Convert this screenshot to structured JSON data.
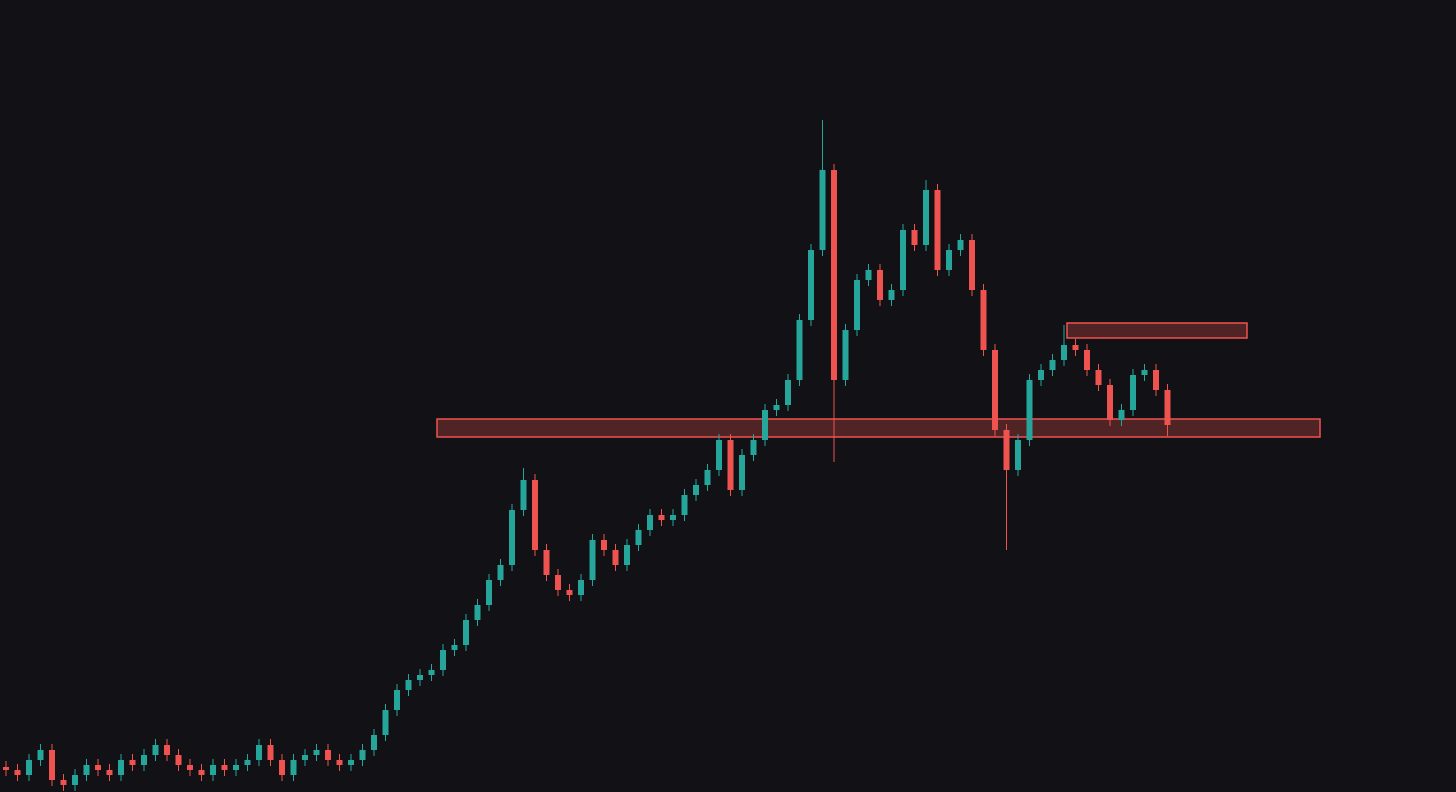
{
  "chart_data": {
    "type": "candlestick",
    "ylim": [
      0,
      792
    ],
    "up_color": "#26a69a",
    "down_color": "#ef5350",
    "open": [
      25,
      22,
      17,
      32,
      42,
      12,
      7,
      17,
      27,
      22,
      17,
      32,
      27,
      37,
      47,
      37,
      27,
      22,
      17,
      27,
      22,
      27,
      32,
      47,
      32,
      17,
      32,
      37,
      42,
      32,
      27,
      32,
      42,
      57,
      82,
      102,
      112,
      117,
      122,
      142,
      147,
      172,
      187,
      212,
      227,
      282,
      312,
      242,
      217,
      202,
      197,
      212,
      252,
      242,
      227,
      247,
      262,
      277,
      272,
      277,
      297,
      307,
      322,
      352,
      302,
      337,
      352,
      382,
      387,
      412,
      472,
      542,
      622,
      412,
      462,
      512,
      522,
      492,
      502,
      562,
      547,
      602,
      522,
      542,
      552,
      502,
      442,
      362,
      322,
      352,
      412,
      422,
      432,
      447,
      442,
      422,
      407,
      372,
      382,
      417,
      422,
      402
    ],
    "high": [
      31,
      28,
      38,
      48,
      48,
      18,
      23,
      33,
      33,
      28,
      38,
      38,
      43,
      53,
      53,
      43,
      33,
      28,
      33,
      33,
      33,
      38,
      53,
      53,
      38,
      38,
      43,
      48,
      48,
      38,
      38,
      48,
      63,
      88,
      108,
      118,
      123,
      128,
      148,
      153,
      178,
      193,
      218,
      233,
      288,
      324,
      318,
      248,
      223,
      208,
      218,
      258,
      258,
      248,
      253,
      268,
      283,
      283,
      283,
      303,
      313,
      328,
      358,
      358,
      343,
      358,
      388,
      393,
      418,
      478,
      548,
      672,
      628,
      468,
      518,
      528,
      528,
      508,
      568,
      568,
      612,
      608,
      548,
      558,
      558,
      508,
      448,
      368,
      358,
      418,
      428,
      438,
      467,
      453,
      448,
      428,
      413,
      388,
      423,
      428,
      428,
      408
    ],
    "low": [
      16,
      11,
      11,
      26,
      6,
      1,
      1,
      11,
      16,
      11,
      11,
      21,
      21,
      31,
      31,
      21,
      16,
      11,
      11,
      16,
      16,
      21,
      26,
      26,
      11,
      11,
      26,
      31,
      26,
      21,
      21,
      26,
      36,
      51,
      76,
      96,
      106,
      111,
      116,
      136,
      141,
      166,
      181,
      206,
      221,
      276,
      236,
      211,
      196,
      191,
      191,
      206,
      236,
      221,
      221,
      241,
      256,
      266,
      266,
      271,
      291,
      301,
      316,
      296,
      296,
      331,
      346,
      376,
      381,
      406,
      466,
      536,
      330,
      406,
      456,
      506,
      486,
      486,
      496,
      541,
      541,
      516,
      516,
      536,
      496,
      436,
      356,
      242,
      316,
      346,
      406,
      416,
      426,
      436,
      416,
      401,
      366,
      366,
      376,
      411,
      396,
      356
    ],
    "close": [
      22,
      17,
      32,
      42,
      12,
      7,
      17,
      27,
      22,
      17,
      32,
      27,
      37,
      47,
      37,
      27,
      22,
      17,
      27,
      22,
      27,
      32,
      47,
      32,
      17,
      32,
      37,
      42,
      32,
      27,
      32,
      42,
      57,
      82,
      102,
      112,
      117,
      122,
      142,
      147,
      172,
      187,
      212,
      227,
      282,
      312,
      242,
      217,
      202,
      197,
      212,
      252,
      242,
      227,
      247,
      262,
      277,
      272,
      277,
      297,
      307,
      322,
      352,
      302,
      337,
      352,
      382,
      387,
      412,
      472,
      542,
      622,
      412,
      462,
      512,
      522,
      492,
      502,
      562,
      547,
      602,
      522,
      542,
      552,
      502,
      442,
      362,
      322,
      352,
      412,
      422,
      432,
      447,
      442,
      422,
      407,
      372,
      382,
      417,
      422,
      402,
      367
    ],
    "zones": [
      {
        "low": 355,
        "high": 373
      },
      {
        "low": 454,
        "high": 469
      }
    ],
    "zone_color": "#ef5350"
  }
}
